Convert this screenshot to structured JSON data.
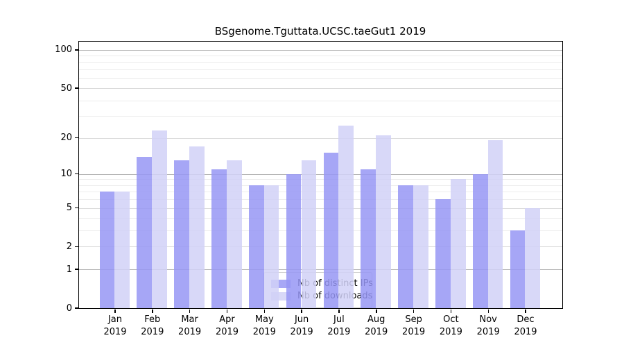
{
  "page": {
    "background": "#ffffff"
  },
  "chart_data": {
    "type": "bar",
    "title": "BSgenome.Tguttata.UCSC.taeGut1 2019",
    "categories": [
      "Jan 2019",
      "Feb 2019",
      "Mar 2019",
      "Apr 2019",
      "May 2019",
      "Jun 2019",
      "Jul 2019",
      "Aug 2019",
      "Sep 2019",
      "Oct 2019",
      "Nov 2019",
      "Dec 2019"
    ],
    "series": [
      {
        "name": "Nb of distinct IPs",
        "color": "#a7a7f6",
        "values": [
          7,
          14,
          13,
          11,
          8,
          10,
          15,
          11,
          8,
          6,
          10,
          3
        ]
      },
      {
        "name": "Nb of downloads",
        "color": "#d8d8f8",
        "values": [
          7,
          23,
          17,
          13,
          8,
          13,
          25,
          21,
          8,
          9,
          19,
          5
        ]
      }
    ],
    "xlabel": "",
    "ylabel": "",
    "y_scale": "log1p",
    "ylim": [
      0,
      116
    ],
    "y_ticks": [
      0,
      1,
      2,
      5,
      10,
      20,
      50,
      100
    ],
    "y_minor_gridlines": [
      3,
      4,
      6,
      7,
      8,
      9,
      30,
      40,
      60,
      70,
      80,
      90
    ],
    "grid": true,
    "legend_position": "lower center",
    "colors": {
      "decade_grid": "#b3b3b3",
      "mid_grid": "#dadada",
      "minor_grid": "#ececec",
      "axis": "#000000",
      "background": "#ffffff"
    },
    "bar_alpha": 0.85
  }
}
